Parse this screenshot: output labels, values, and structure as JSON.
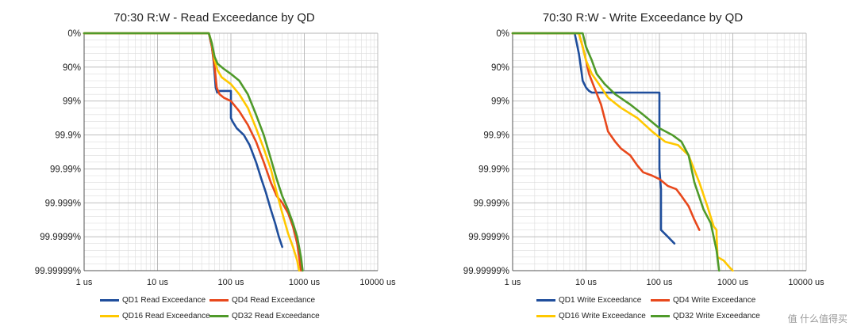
{
  "watermark": "值 什么值得买",
  "colors": {
    "QD1": "#1f4e9c",
    "QD4": "#e8481c",
    "QD16": "#ffc800",
    "QD32": "#4f9a2a"
  },
  "chart_data": [
    {
      "type": "line",
      "title": "70:30 R:W - Read Exceedance by QD",
      "x_scale": "log",
      "xlim": [
        1,
        10000
      ],
      "x_ticks": [
        "1 us",
        "10 us",
        "100 us",
        "1000 us",
        "10000 us"
      ],
      "y_scale": "exceedance (log nines)",
      "y_ticks": [
        "0%",
        "90%",
        "99%",
        "99.9%",
        "99.99%",
        "99.999%",
        "99.9999%",
        "99.99999%"
      ],
      "ylim_nines": [
        0,
        7
      ],
      "x_unit": "us",
      "y_unit": "nines (0 = 0%, 1 = 90%, 2 = 99%, ...)",
      "legend": "bottom",
      "grid": true,
      "series": [
        {
          "name": "QD1 Read Exceedance",
          "key": "QD1",
          "x": [
            1,
            50,
            55,
            58,
            60,
            62,
            65,
            70,
            100,
            100,
            105,
            120,
            150,
            180,
            220,
            260,
            300,
            350,
            400,
            450,
            500
          ],
          "y": [
            0,
            0,
            0.4,
            0.8,
            1.2,
            1.6,
            1.75,
            1.7,
            1.7,
            2.5,
            2.6,
            2.8,
            3.0,
            3.3,
            3.8,
            4.3,
            4.7,
            5.2,
            5.6,
            6.0,
            6.3
          ]
        },
        {
          "name": "QD4 Read Exceedance",
          "key": "QD4",
          "x": [
            1,
            50,
            55,
            60,
            64,
            70,
            80,
            100,
            130,
            170,
            220,
            280,
            350,
            420,
            500,
            600,
            700,
            800,
            850,
            900
          ],
          "y": [
            0,
            0,
            0.4,
            1.0,
            1.6,
            1.8,
            1.9,
            2.0,
            2.3,
            2.7,
            3.2,
            3.8,
            4.4,
            4.8,
            5.0,
            5.3,
            5.7,
            6.2,
            6.6,
            7.0
          ]
        },
        {
          "name": "QD16 Read Exceedance",
          "key": "QD16",
          "x": [
            1,
            50,
            55,
            60,
            66,
            75,
            100,
            130,
            170,
            220,
            280,
            350,
            420,
            500,
            600,
            700,
            800,
            850
          ],
          "y": [
            0,
            0,
            0.3,
            0.8,
            1.1,
            1.3,
            1.5,
            1.8,
            2.2,
            2.8,
            3.4,
            4.0,
            4.7,
            5.3,
            5.9,
            6.3,
            6.7,
            7.0
          ]
        },
        {
          "name": "QD32 Read Exceedance",
          "key": "QD32",
          "x": [
            1,
            50,
            55,
            60,
            66,
            80,
            100,
            130,
            170,
            220,
            280,
            350,
            420,
            500,
            600,
            700,
            800,
            900,
            950
          ],
          "y": [
            0,
            0,
            0.3,
            0.7,
            0.9,
            1.05,
            1.2,
            1.4,
            1.8,
            2.4,
            3.0,
            3.7,
            4.3,
            4.8,
            5.2,
            5.6,
            6.0,
            6.6,
            7.0
          ]
        }
      ]
    },
    {
      "type": "line",
      "title": "70:30 R:W - Write Exceedance by QD",
      "x_scale": "log",
      "xlim": [
        1,
        10000
      ],
      "x_ticks": [
        "1 us",
        "10 us",
        "100 us",
        "1000 us",
        "10000 us"
      ],
      "y_scale": "exceedance (log nines)",
      "y_ticks": [
        "0%",
        "90%",
        "99%",
        "99.9%",
        "99.99%",
        "99.999%",
        "99.9999%",
        "99.99999%"
      ],
      "ylim_nines": [
        0,
        7
      ],
      "x_unit": "us",
      "y_unit": "nines (0 = 0%, 1 = 90%, 2 = 99%, ...)",
      "legend": "bottom",
      "grid": true,
      "series": [
        {
          "name": "QD1 Write Exceedance",
          "key": "QD1",
          "x": [
            1,
            7,
            7.5,
            8,
            8.5,
            9,
            10,
            11,
            12,
            15,
            20,
            30,
            50,
            80,
            100,
            100,
            105,
            105,
            130,
            160
          ],
          "y": [
            0,
            0,
            0.3,
            0.6,
            1.0,
            1.4,
            1.6,
            1.7,
            1.75,
            1.75,
            1.75,
            1.75,
            1.75,
            1.75,
            1.75,
            4.0,
            4.6,
            5.8,
            6.0,
            6.2
          ]
        },
        {
          "name": "QD4 Write Exceedance",
          "key": "QD4",
          "x": [
            1,
            8,
            9,
            10,
            11,
            13,
            16,
            20,
            25,
            30,
            40,
            50,
            60,
            80,
            100,
            130,
            170,
            200,
            250,
            300,
            350
          ],
          "y": [
            0,
            0,
            0.4,
            0.8,
            1.2,
            1.6,
            2.1,
            2.9,
            3.2,
            3.4,
            3.6,
            3.9,
            4.1,
            4.2,
            4.3,
            4.5,
            4.6,
            4.8,
            5.1,
            5.5,
            5.8
          ]
        },
        {
          "name": "QD16 Write Exceedance",
          "key": "QD16",
          "x": [
            1,
            8,
            9,
            10,
            12,
            15,
            20,
            30,
            50,
            80,
            120,
            180,
            250,
            350,
            450,
            550,
            600,
            600,
            620,
            750,
            900,
            1000
          ],
          "y": [
            0,
            0,
            0.4,
            0.8,
            1.2,
            1.5,
            1.9,
            2.2,
            2.5,
            2.9,
            3.2,
            3.3,
            3.6,
            4.4,
            5.1,
            5.7,
            5.8,
            5.95,
            6.6,
            6.7,
            6.9,
            7.0
          ]
        },
        {
          "name": "QD32 Write Exceedance",
          "key": "QD32",
          "x": [
            1,
            9,
            10,
            12,
            14,
            18,
            25,
            40,
            60,
            100,
            150,
            200,
            250,
            300,
            400,
            500,
            600,
            650
          ],
          "y": [
            0,
            0,
            0.4,
            0.8,
            1.2,
            1.5,
            1.8,
            2.1,
            2.4,
            2.8,
            3.0,
            3.2,
            3.6,
            4.4,
            5.2,
            5.6,
            6.4,
            7.0
          ]
        }
      ]
    }
  ]
}
